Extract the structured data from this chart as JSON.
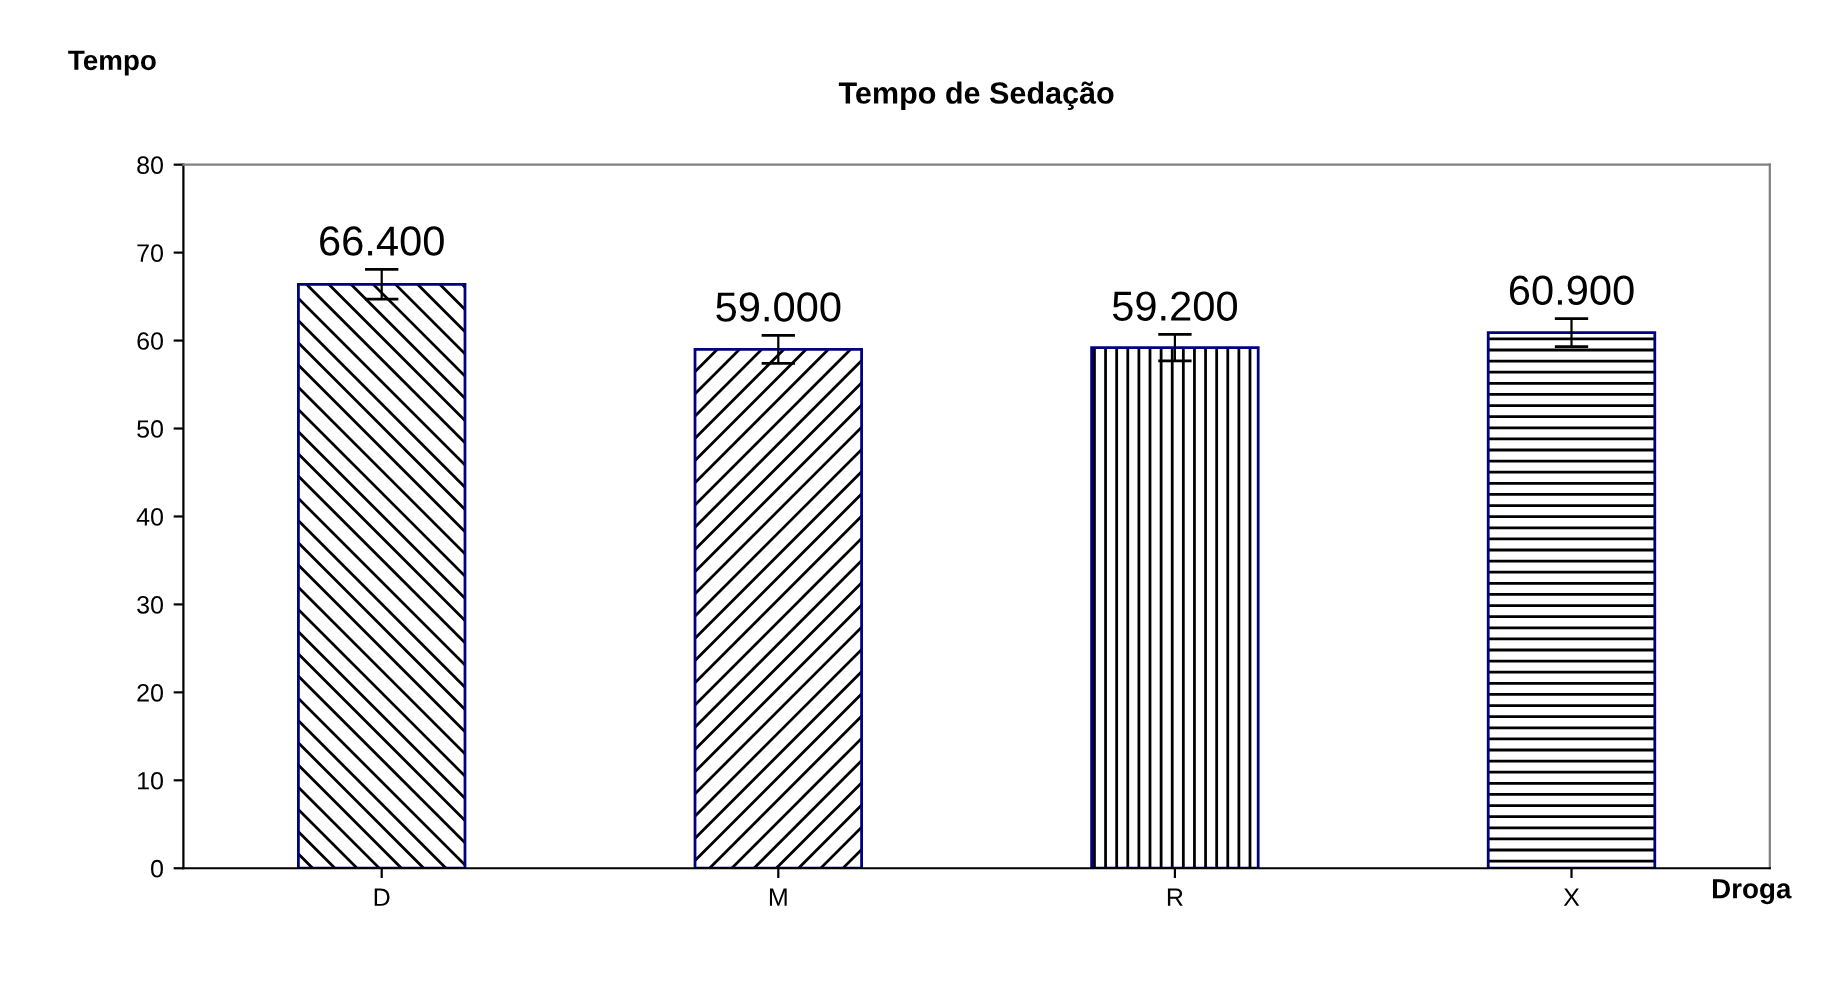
{
  "chart_data": {
    "type": "bar",
    "title": "Tempo de Sedação",
    "ylabel": "Tempo",
    "xlabel": "Droga",
    "categories": [
      "D",
      "M",
      "R",
      "X"
    ],
    "values": [
      66.4,
      59.0,
      59.2,
      60.9
    ],
    "errors": [
      1.7,
      1.6,
      1.5,
      1.6
    ],
    "value_labels": [
      "66.400",
      "59.000",
      "59.200",
      "60.900"
    ],
    "color": "#000000",
    "ylim": [
      0,
      80
    ],
    "yticks": [
      0,
      10,
      20,
      30,
      40,
      50,
      60,
      70,
      80
    ],
    "grid": false,
    "legend": false
  }
}
